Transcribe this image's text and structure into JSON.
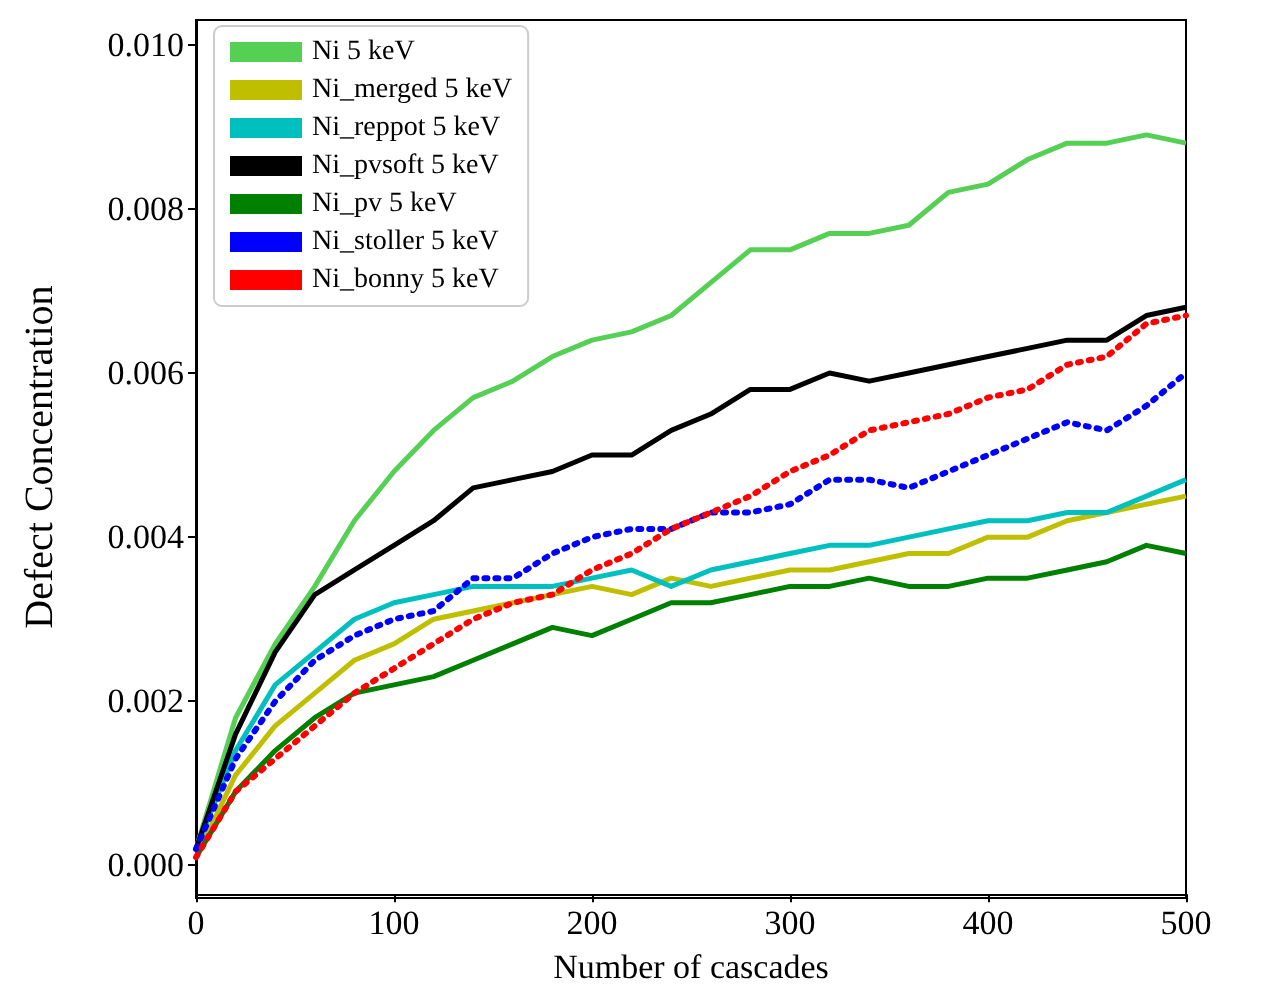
{
  "chart_data": {
    "type": "line",
    "xlabel": "Number of cascades",
    "ylabel": "Defect Concentration",
    "x": [
      0,
      20,
      40,
      60,
      80,
      100,
      120,
      140,
      160,
      180,
      200,
      220,
      240,
      260,
      280,
      300,
      320,
      340,
      360,
      380,
      400,
      420,
      440,
      460,
      480,
      500
    ],
    "xlim": [
      0,
      500
    ],
    "xticks": [
      0,
      100,
      200,
      300,
      400,
      500
    ],
    "ylim": [
      -0.00035,
      0.0103
    ],
    "yticks": [
      {
        "value": 0,
        "label": "0.000"
      },
      {
        "value": 0.002,
        "label": "0.002"
      },
      {
        "value": 0.004,
        "label": "0.004"
      },
      {
        "value": 0.006,
        "label": "0.006"
      },
      {
        "value": 0.008,
        "label": "0.008"
      },
      {
        "value": 0.01,
        "label": "0.010"
      }
    ],
    "grid": false,
    "legend": "top left",
    "series": [
      {
        "name": "Ni 5 keV",
        "color": "#55d055",
        "line_style": "solid",
        "values": [
          0.0002,
          0.0018,
          0.0027,
          0.0034,
          0.0042,
          0.0048,
          0.0053,
          0.0057,
          0.0059,
          0.0062,
          0.0064,
          0.0065,
          0.0067,
          0.0071,
          0.0075,
          0.0075,
          0.0077,
          0.0077,
          0.0078,
          0.0082,
          0.0083,
          0.0086,
          0.0088,
          0.0088,
          0.0089,
          0.0088
        ]
      },
      {
        "name": "Ni_merged 5 keV",
        "color": "#bfbf00",
        "line_style": "solid",
        "values": [
          0.0001,
          0.0011,
          0.0017,
          0.0021,
          0.0025,
          0.0027,
          0.003,
          0.0031,
          0.0032,
          0.0033,
          0.0034,
          0.0033,
          0.0035,
          0.0034,
          0.0035,
          0.0036,
          0.0036,
          0.0037,
          0.0038,
          0.0038,
          0.004,
          0.004,
          0.0042,
          0.0043,
          0.0044,
          0.0045
        ]
      },
      {
        "name": "Ni_reppot 5 keV",
        "color": "#00bfbf",
        "line_style": "solid",
        "values": [
          0.0002,
          0.0014,
          0.0022,
          0.0026,
          0.003,
          0.0032,
          0.0033,
          0.0034,
          0.0034,
          0.0034,
          0.0035,
          0.0036,
          0.0034,
          0.0036,
          0.0037,
          0.0038,
          0.0039,
          0.0039,
          0.004,
          0.0041,
          0.0042,
          0.0042,
          0.0043,
          0.0043,
          0.0045,
          0.0047
        ]
      },
      {
        "name": "Ni_pvsoft 5 keV",
        "color": "#000000",
        "line_style": "solid",
        "values": [
          0.0002,
          0.0016,
          0.0026,
          0.0033,
          0.0036,
          0.0039,
          0.0042,
          0.0046,
          0.0047,
          0.0048,
          0.005,
          0.005,
          0.0053,
          0.0055,
          0.0058,
          0.0058,
          0.006,
          0.0059,
          0.006,
          0.0061,
          0.0062,
          0.0063,
          0.0064,
          0.0064,
          0.0067,
          0.0068
        ]
      },
      {
        "name": "Ni_pv 5 keV",
        "color": "#008000",
        "line_style": "solid",
        "values": [
          0.0001,
          0.0009,
          0.0014,
          0.0018,
          0.0021,
          0.0022,
          0.0023,
          0.0025,
          0.0027,
          0.0029,
          0.0028,
          0.003,
          0.0032,
          0.0032,
          0.0033,
          0.0034,
          0.0034,
          0.0035,
          0.0034,
          0.0034,
          0.0035,
          0.0035,
          0.0036,
          0.0037,
          0.0039,
          0.0038
        ]
      },
      {
        "name": "Ni_stoller 5 keV",
        "color": "#0000ff",
        "line_style": "dotted",
        "values": [
          0.0002,
          0.0013,
          0.002,
          0.0025,
          0.0028,
          0.003,
          0.0031,
          0.0035,
          0.0035,
          0.0038,
          0.004,
          0.0041,
          0.0041,
          0.0043,
          0.0043,
          0.0044,
          0.0047,
          0.0047,
          0.0046,
          0.0048,
          0.005,
          0.0052,
          0.0054,
          0.0053,
          0.0056,
          0.006
        ]
      },
      {
        "name": "Ni_bonny 5 keV",
        "color": "#ff0000",
        "line_style": "dotted",
        "values": [
          0.0001,
          0.0009,
          0.0013,
          0.0017,
          0.0021,
          0.0024,
          0.0027,
          0.003,
          0.0032,
          0.0033,
          0.0036,
          0.0038,
          0.0041,
          0.0043,
          0.0045,
          0.0048,
          0.005,
          0.0053,
          0.0054,
          0.0055,
          0.0057,
          0.0058,
          0.0061,
          0.0062,
          0.0066,
          0.0067
        ]
      }
    ]
  }
}
